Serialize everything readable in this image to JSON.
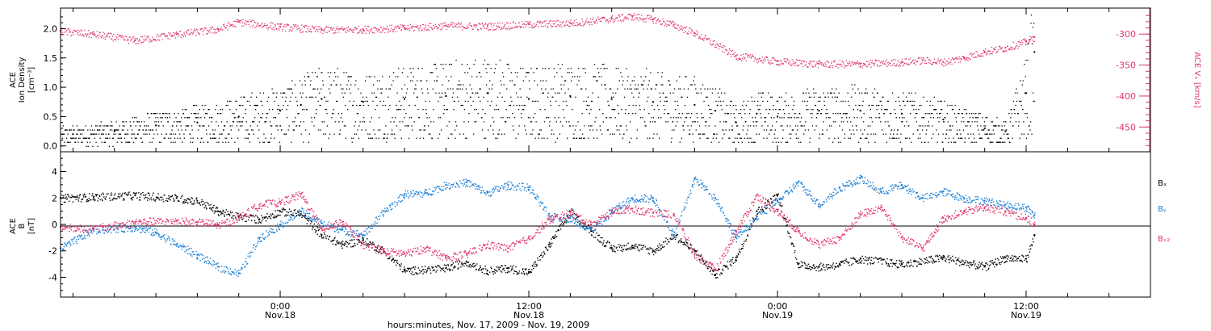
{
  "x_axis": {
    "ticks": [
      {
        "time": "0:00",
        "date": "Nov.18",
        "hours": 24
      },
      {
        "time": "12:00",
        "date": "Nov.18",
        "hours": 36
      },
      {
        "time": "0:00",
        "date": "Nov.19",
        "hours": 48
      },
      {
        "time": "12:00",
        "date": "Nov.19",
        "hours": 60
      }
    ],
    "title": "hours:minutes, Nov. 17, 2009 - Nov. 19, 2009",
    "range_hours": [
      13.4,
      66.0
    ],
    "minor_tick_hours": 2
  },
  "colors": {
    "black": "#000000",
    "blue": "#1a7fd6",
    "pink": "#e0356b"
  },
  "chart_data": [
    {
      "type": "scatter",
      "panel": "top",
      "left_axis": {
        "label_lines": [
          "ACE",
          "Ion Density",
          "[cm⁻³]"
        ],
        "ticks": [
          "0.0",
          "0.5",
          "1.0",
          "1.5",
          "2.0"
        ],
        "range": [
          -0.1,
          2.35
        ]
      },
      "right_axis": {
        "label": "ACE Vₓ [km/s]",
        "ticks": [
          "-300",
          "-350",
          "-400",
          "-450"
        ],
        "range": [
          -490,
          -258
        ],
        "color": "#e0356b"
      },
      "series": [
        {
          "name": "Ion Density",
          "color": "#000000",
          "x_hours": [
            14,
            16,
            18,
            20,
            22,
            24,
            25,
            26,
            28,
            30,
            32,
            34,
            36,
            38,
            40,
            42,
            44,
            45,
            46,
            47,
            48,
            50,
            52,
            54,
            56,
            58,
            59,
            60,
            60.4
          ],
          "y": [
            0.2,
            0.25,
            0.35,
            0.4,
            0.5,
            0.6,
            0.7,
            0.8,
            0.75,
            0.8,
            0.85,
            0.9,
            0.8,
            0.85,
            0.8,
            0.75,
            0.7,
            0.6,
            0.4,
            0.55,
            0.5,
            0.6,
            0.6,
            0.55,
            0.45,
            0.3,
            0.25,
            0.9,
            1.6
          ]
        },
        {
          "name": "Vx",
          "color": "#e0356b",
          "x_hours": [
            13.4,
            15,
            17,
            19,
            21,
            22,
            24,
            26,
            28,
            30,
            32,
            34,
            36,
            38,
            40,
            41,
            42,
            43,
            44,
            46,
            48,
            50,
            52,
            54,
            55,
            56,
            57,
            58,
            59,
            60,
            60.4
          ],
          "y": [
            -295,
            -300,
            -310,
            -300,
            -292,
            -280,
            -288,
            -293,
            -292,
            -290,
            -286,
            -287,
            -284,
            -282,
            -275,
            -271,
            -276,
            -285,
            -298,
            -335,
            -344,
            -348,
            -348,
            -345,
            -342,
            -345,
            -338,
            -328,
            -322,
            -312,
            -305
          ]
        }
      ]
    },
    {
      "type": "scatter",
      "panel": "bottom",
      "left_axis": {
        "label_lines": [
          "ACE",
          "B",
          "[nT]"
        ],
        "ticks": [
          "-4",
          "-2",
          "0",
          "2",
          "4"
        ],
        "range": [
          -5.5,
          5.5
        ]
      },
      "legend": [
        {
          "name": "Bₓ",
          "color": "#000000"
        },
        {
          "name": "Bᵧ",
          "color": "#1a7fd6"
        },
        {
          "name": "Bₓ₂",
          "color": "#e0356b"
        }
      ],
      "series": [
        {
          "name": "Bx",
          "color": "#000000",
          "x_hours": [
            13.4,
            15,
            17,
            19,
            20,
            21,
            22,
            23,
            24,
            25,
            26,
            27,
            28,
            29,
            30,
            32,
            33,
            34,
            35,
            36,
            37,
            38,
            39,
            40,
            41,
            42,
            43,
            44,
            45,
            46,
            47,
            48,
            49,
            50,
            51,
            52,
            54,
            56,
            58,
            59,
            60,
            60.4
          ],
          "y": [
            2.0,
            2.1,
            2.2,
            2.0,
            1.8,
            1.0,
            0.6,
            0.4,
            1.0,
            0.8,
            -0.8,
            -1.5,
            -1.2,
            -2.0,
            -3.5,
            -3.3,
            -2.8,
            -3.5,
            -3.3,
            -3.6,
            -1.5,
            1.0,
            -0.5,
            -1.8,
            -1.6,
            -2.0,
            -0.8,
            -2.0,
            -3.8,
            -2.5,
            1.0,
            2.2,
            -3.0,
            -3.2,
            -3.0,
            -2.6,
            -3.0,
            -2.5,
            -3.2,
            -2.5,
            -2.6,
            -0.8
          ]
        },
        {
          "name": "By",
          "color": "#1a7fd6",
          "x_hours": [
            13.4,
            15,
            17,
            18,
            19,
            20,
            21,
            22,
            23,
            24,
            25,
            26,
            27,
            28,
            29,
            30,
            31,
            32,
            33,
            34,
            35,
            36,
            37,
            38,
            39,
            40,
            41,
            42,
            43,
            44,
            45,
            46,
            47,
            48,
            49,
            50,
            51,
            52,
            53,
            54,
            55,
            56,
            57,
            58,
            59,
            60,
            60.4
          ],
          "y": [
            -1.8,
            -0.4,
            -0.2,
            -0.6,
            -1.5,
            -2.3,
            -3.2,
            -3.7,
            -1.0,
            0.0,
            1.0,
            0.1,
            -0.4,
            -0.8,
            1.0,
            2.3,
            2.4,
            3.0,
            3.2,
            2.4,
            3.0,
            2.8,
            0.6,
            0.5,
            -0.4,
            1.0,
            2.0,
            2.0,
            -0.8,
            3.5,
            2.0,
            -1.0,
            0.6,
            1.8,
            3.2,
            1.5,
            2.8,
            3.5,
            2.5,
            3.0,
            2.0,
            2.5,
            2.0,
            1.8,
            1.5,
            1.3,
            0.7
          ]
        },
        {
          "name": "Bz",
          "color": "#e0356b",
          "x_hours": [
            13.4,
            15,
            17,
            19,
            20,
            21,
            22,
            23,
            24,
            25,
            26,
            27,
            28,
            29,
            30,
            31,
            32,
            33,
            34,
            35,
            36,
            37,
            38,
            39,
            40,
            41,
            42,
            43,
            44,
            45,
            46,
            47,
            48,
            49,
            50,
            51,
            52,
            53,
            54,
            55,
            56,
            57,
            58,
            59,
            60,
            60.4
          ],
          "y": [
            -0.2,
            -0.3,
            0.2,
            0.3,
            0.2,
            0.0,
            0.5,
            1.5,
            1.7,
            2.3,
            -0.3,
            0.2,
            -1.5,
            -2.0,
            -2.2,
            -1.8,
            -2.5,
            -2.2,
            -1.5,
            -1.8,
            -1.0,
            0.4,
            0.9,
            0.0,
            1.0,
            1.2,
            0.9,
            0.8,
            -2.3,
            -3.4,
            -0.5,
            2.2,
            1.0,
            -0.5,
            -1.5,
            -1.0,
            0.8,
            1.3,
            -1.0,
            -1.8,
            0.5,
            1.0,
            1.3,
            1.0,
            0.5,
            0.0
          ]
        }
      ]
    }
  ]
}
